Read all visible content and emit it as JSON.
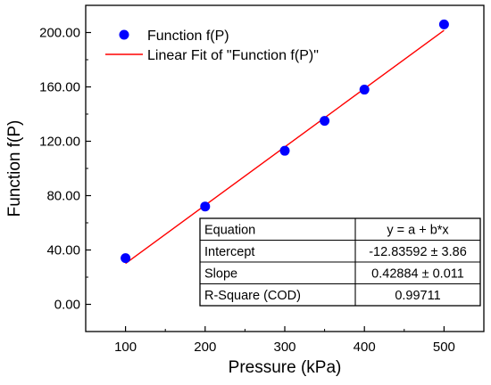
{
  "chart_data": {
    "type": "scatter",
    "title": "",
    "xlabel": "Pressure (kPa)",
    "ylabel": "Function f(P)",
    "xlim": [
      50,
      550
    ],
    "ylim": [
      -20,
      220
    ],
    "x_ticks": [
      100,
      200,
      300,
      400,
      500
    ],
    "x_tick_labels": [
      "100",
      "200",
      "300",
      "400",
      "500"
    ],
    "y_ticks": [
      0,
      40,
      80,
      120,
      160,
      200
    ],
    "y_tick_labels": [
      "0.00",
      "40.00",
      "80.00",
      "120.00",
      "160.00",
      "200.00"
    ],
    "series": [
      {
        "name": "Function f(P)",
        "kind": "scatter",
        "color": "#0000ff",
        "x": [
          100,
          200,
          300,
          350,
          400,
          500
        ],
        "y": [
          34,
          72,
          113,
          135,
          158,
          206
        ]
      },
      {
        "name": "Linear Fit of \"Function f(P)\"",
        "kind": "line",
        "color": "#ff0000",
        "x": [
          100,
          500
        ],
        "y": [
          30.05,
          201.58
        ]
      }
    ],
    "legend_position": "top-left",
    "fit_table": [
      {
        "label": "Equation",
        "value": "y = a + b*x"
      },
      {
        "label": "Intercept",
        "value": "-12.83592 ± 3.86"
      },
      {
        "label": "Slope",
        "value": "0.42884 ± 0.011"
      },
      {
        "label": "R-Square (COD)",
        "value": "0.99711"
      }
    ],
    "fit_table_position": "bottom-right"
  }
}
